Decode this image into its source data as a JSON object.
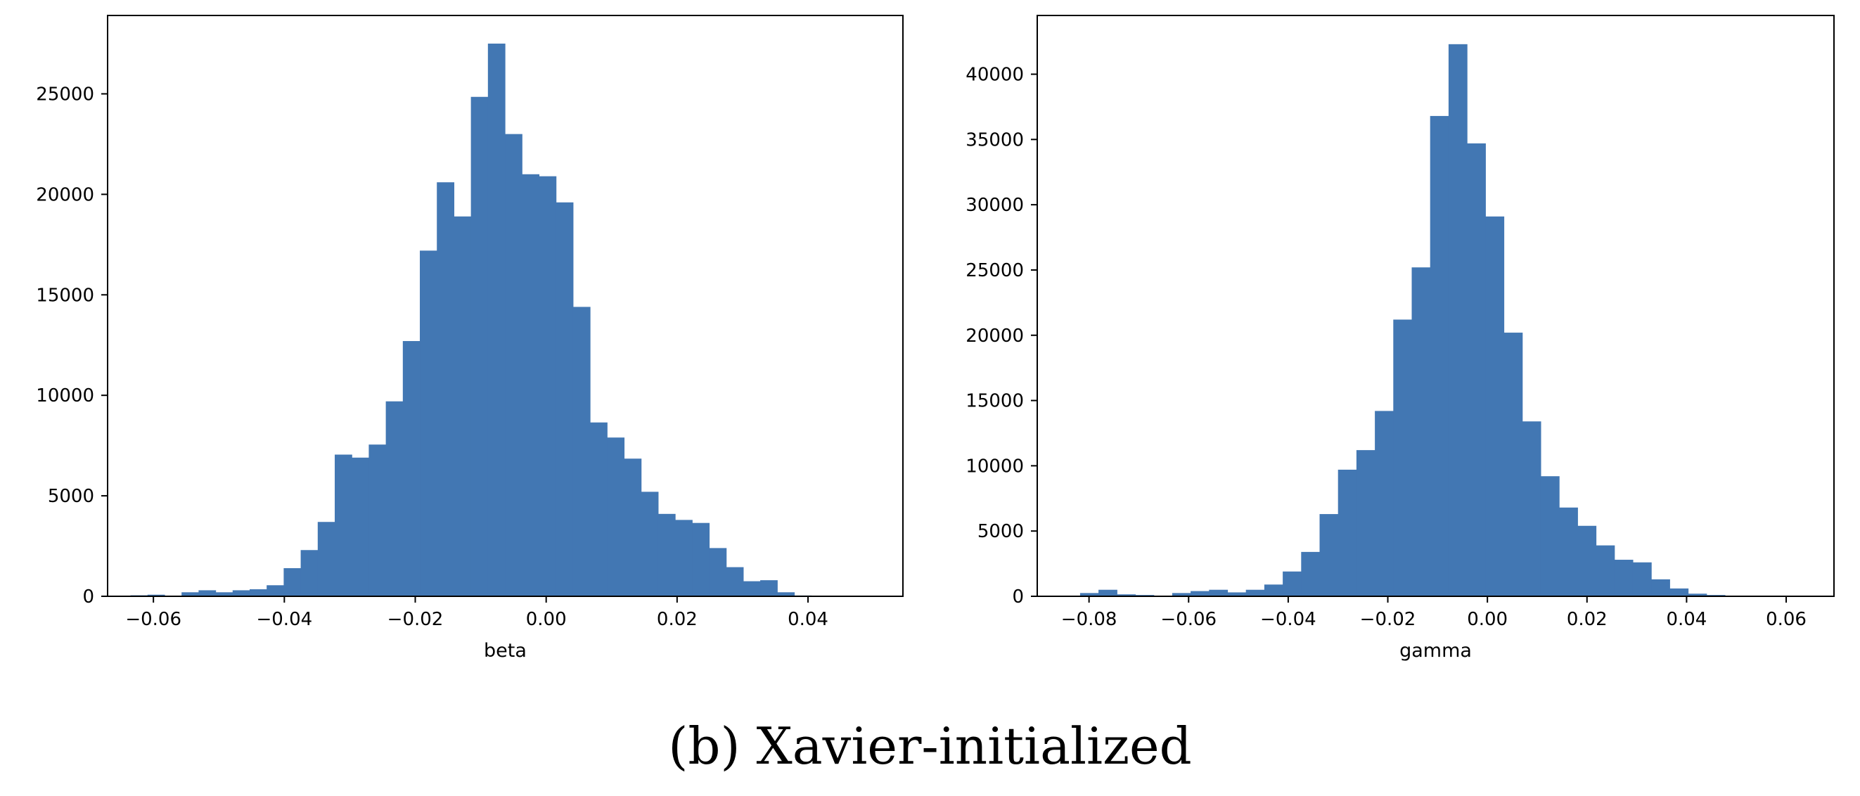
{
  "caption": "(b) Xavier-initialized",
  "colors": {
    "bar": "#4277b3",
    "frame": "#000000"
  },
  "chart_data": [
    {
      "type": "bar",
      "title": "",
      "xlabel": "beta",
      "ylabel": "",
      "bin_start": -0.0635,
      "bin_width": 0.0026,
      "values": [
        50,
        80,
        30,
        200,
        300,
        200,
        300,
        350,
        550,
        1400,
        2300,
        3700,
        7050,
        6900,
        7550,
        9700,
        12700,
        17200,
        20600,
        18900,
        24850,
        27500,
        23000,
        21000,
        20900,
        19600,
        14400,
        8650,
        7900,
        6850,
        5200,
        4100,
        3800,
        3650,
        2400,
        1450,
        750,
        800,
        200,
        40
      ],
      "xlim": [
        -0.067,
        0.0545
      ],
      "ylim": [
        0,
        28900
      ],
      "xticks": [
        -0.06,
        -0.04,
        -0.02,
        0.0,
        0.02,
        0.04
      ],
      "xtick_labels": [
        "−0.06",
        "−0.04",
        "−0.02",
        "0.00",
        "0.02",
        "0.04"
      ],
      "yticks": [
        0,
        5000,
        10000,
        15000,
        20000,
        25000
      ],
      "ytick_labels": [
        "0",
        "5000",
        "10000",
        "15000",
        "20000",
        "25000"
      ]
    },
    {
      "type": "bar",
      "title": "",
      "xlabel": "gamma",
      "ylabel": "",
      "bin_start": -0.0855,
      "bin_width": 0.0037,
      "values": [
        50,
        250,
        500,
        150,
        100,
        50,
        250,
        400,
        500,
        300,
        500,
        900,
        1900,
        3400,
        6300,
        9700,
        11200,
        14200,
        21200,
        25200,
        36800,
        42300,
        34700,
        29100,
        20200,
        13400,
        9200,
        6800,
        5400,
        3900,
        2800,
        2600,
        1300,
        600,
        200,
        100,
        50,
        30
      ],
      "xlim": [
        -0.0904,
        0.0696
      ],
      "ylim": [
        0,
        44500
      ],
      "xticks": [
        -0.08,
        -0.06,
        -0.04,
        -0.02,
        0.0,
        0.02,
        0.04,
        0.06
      ],
      "xtick_labels": [
        "−0.08",
        "−0.06",
        "−0.04",
        "−0.02",
        "0.00",
        "0.02",
        "0.04",
        "0.06"
      ],
      "yticks": [
        0,
        5000,
        10000,
        15000,
        20000,
        25000,
        30000,
        35000,
        40000
      ],
      "ytick_labels": [
        "0",
        "5000",
        "10000",
        "15000",
        "20000",
        "25000",
        "30000",
        "35000",
        "40000"
      ]
    }
  ]
}
